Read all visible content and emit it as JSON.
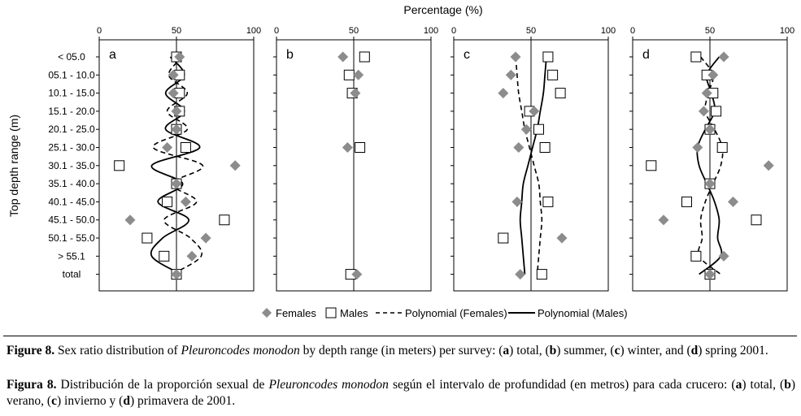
{
  "chart_data": [
    {
      "type": "scatter",
      "panel_label": "a",
      "xlim": [
        0,
        100
      ],
      "categories": [
        "< 05.0",
        "05.1 - 10.0",
        "10.1 - 15.0",
        "15.1 - 20.0",
        "20.1 - 25.0",
        "25.1 - 30.0",
        "30.1 - 35.0",
        "35.1 - 40.0",
        "40.1 - 45.0",
        "45.1 - 50.0",
        "50.1 - 55.0",
        "> 55.1",
        "total"
      ],
      "series": [
        {
          "name": "Females",
          "values": [
            52,
            48,
            48,
            50,
            50,
            44,
            88,
            50,
            56,
            20,
            69,
            60,
            50
          ]
        },
        {
          "name": "Males",
          "values": [
            50,
            52,
            52,
            52,
            50,
            56,
            13,
            50,
            44,
            81,
            31,
            42,
            50
          ]
        },
        {
          "name": "Polynomial (Females)",
          "values": [
            54,
            45,
            57,
            44,
            57,
            35,
            67,
            47,
            63,
            42,
            59,
            66,
            47
          ]
        },
        {
          "name": "Polynomial (Males)",
          "values": [
            46,
            55,
            43,
            55,
            43,
            65,
            34,
            54,
            38,
            58,
            41,
            34,
            53
          ]
        }
      ]
    },
    {
      "type": "scatter",
      "panel_label": "b",
      "xlim": [
        0,
        100
      ],
      "categories": [
        "< 05.0",
        "05.1 - 10.0",
        "10.1 - 15.0",
        "15.1 - 20.0",
        "20.1 - 25.0",
        "25.1 - 30.0",
        "30.1 - 35.0",
        "35.1 - 40.0",
        "40.1 - 45.0",
        "45.1 - 50.0",
        "50.1 - 55.0",
        "> 55.1",
        "total"
      ],
      "series": [
        {
          "name": "Females",
          "values": [
            43,
            53,
            51,
            null,
            null,
            46,
            null,
            null,
            null,
            null,
            null,
            null,
            52
          ]
        },
        {
          "name": "Males",
          "values": [
            57,
            47,
            49,
            null,
            null,
            54,
            null,
            null,
            null,
            null,
            null,
            null,
            48
          ]
        }
      ]
    },
    {
      "type": "scatter",
      "panel_label": "c",
      "xlim": [
        0,
        100
      ],
      "categories": [
        "< 05.0",
        "05.1 - 10.0",
        "10.1 - 15.0",
        "15.1 - 20.0",
        "20.1 - 25.0",
        "25.1 - 30.0",
        "30.1 - 35.0",
        "35.1 - 40.0",
        "40.1 - 45.0",
        "45.1 - 50.0",
        "50.1 - 55.0",
        "> 55.1",
        "total"
      ],
      "series": [
        {
          "name": "Females",
          "values": [
            40,
            37,
            32,
            52,
            47,
            42,
            null,
            null,
            41,
            null,
            70,
            null,
            43
          ]
        },
        {
          "name": "Males",
          "values": [
            61,
            64,
            69,
            49,
            55,
            59,
            null,
            null,
            61,
            null,
            32,
            null,
            57
          ]
        },
        {
          "name": "Polynomial (Females)",
          "values": [
            40,
            41,
            42,
            44,
            46,
            49,
            52,
            55,
            56,
            57,
            56,
            55,
            54
          ]
        },
        {
          "name": "Polynomial (Males)",
          "values": [
            60,
            59,
            58,
            56,
            54,
            51,
            48,
            45,
            44,
            43,
            44,
            45,
            46
          ]
        }
      ]
    },
    {
      "type": "scatter",
      "panel_label": "d",
      "xlim": [
        0,
        100
      ],
      "categories": [
        "< 05.0",
        "05.1 - 10.0",
        "10.1 - 15.0",
        "15.1 - 20.0",
        "20.1 - 25.0",
        "25.1 - 30.0",
        "30.1 - 35.0",
        "35.1 - 40.0",
        "40.1 - 45.0",
        "45.1 - 50.0",
        "50.1 - 55.0",
        "> 55.1",
        "total"
      ],
      "series": [
        {
          "name": "Females",
          "values": [
            59,
            52,
            48,
            46,
            50,
            42,
            88,
            50,
            65,
            20,
            null,
            59,
            50
          ]
        },
        {
          "name": "Males",
          "values": [
            41,
            48,
            52,
            54,
            50,
            58,
            12,
            50,
            35,
            80,
            null,
            41,
            50
          ]
        },
        {
          "name": "Polynomial (Females)",
          "values": [
            44,
            52,
            49,
            47,
            53,
            58,
            57,
            52,
            47,
            44,
            45,
            43,
            57
          ]
        },
        {
          "name": "Polynomial (Males)",
          "values": [
            56,
            48,
            51,
            53,
            47,
            42,
            43,
            48,
            53,
            56,
            55,
            57,
            43
          ]
        }
      ]
    }
  ],
  "x_axis_title": "Percentage (%)",
  "y_axis_title": "Top depth range (m)",
  "x_ticks": [
    "0",
    "50",
    "100"
  ],
  "legend": {
    "females": "Females",
    "males": "Males",
    "poly_females": "Polynomial (Females)",
    "poly_males": "Polynomial (Males)"
  },
  "captions": {
    "en": {
      "fig_label": "Figure 8.",
      "text1": " Sex ratio distribution of ",
      "species": "Pleuroncodes monodon",
      "text2": " by depth range (in meters) per survey: (",
      "a": "a",
      "t_a": ") total, (",
      "b": "b",
      "t_b": ") summer, (",
      "c": "c",
      "t_c": ") winter, and (",
      "d": "d",
      "t_d": ") spring 2001."
    },
    "es": {
      "fig_label": "Figura 8.",
      "text1": " Distribución de la proporción sexual de ",
      "species": "Pleuroncodes monodon",
      "text2": " según el intervalo de profundidad (en metros) para cada crucero: (",
      "a": "a",
      "t_a": ") total, (",
      "b": "b",
      "t_b": ") verano, (",
      "c": "c",
      "t_c": ") invierno y (",
      "d": "d",
      "t_d": ") primavera de 2001."
    }
  },
  "colors": {
    "females_marker": "#8c8c8c",
    "males_marker": "#000000",
    "lines": "#000000"
  }
}
